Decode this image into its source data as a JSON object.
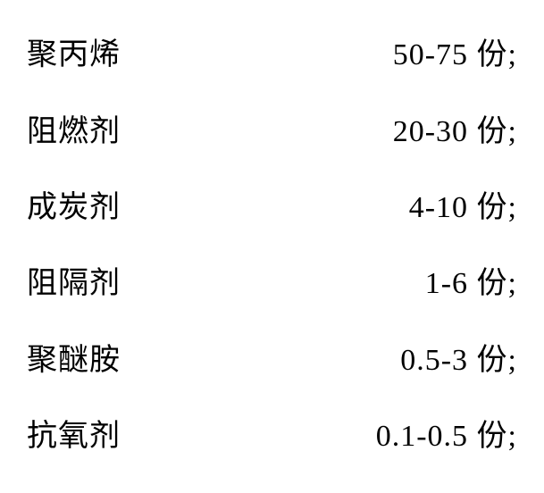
{
  "type": "table",
  "rows": [
    {
      "label": "聚丙烯",
      "value": "50-75 份;"
    },
    {
      "label": "阻燃剂",
      "value": "20-30 份;"
    },
    {
      "label": "成炭剂",
      "value": "4-10 份;"
    },
    {
      "label": "阻隔剂",
      "value": "1-6 份;"
    },
    {
      "label": "聚醚胺",
      "value": "0.5-3 份;"
    },
    {
      "label": "抗氧剂",
      "value": "0.1-0.5 份;"
    }
  ],
  "fontsize": 34,
  "text_color": "#000000",
  "background_color": "#ffffff",
  "font_family": "SimSun"
}
